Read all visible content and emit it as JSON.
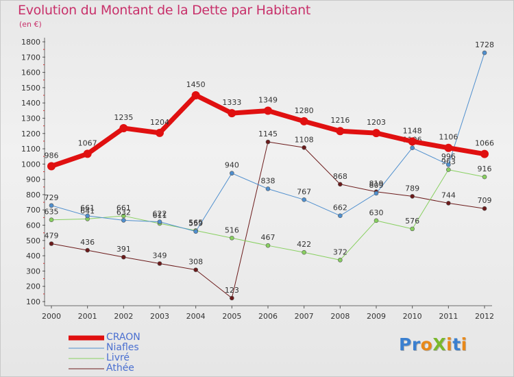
{
  "title": "Evolution du Montant de la Dette par Habitant",
  "subtitle": "(en €)",
  "logo": {
    "text": "ProXiti",
    "letter_colors": [
      "#3a7fd0",
      "#3a7fd0",
      "#e8891a",
      "#7ab82c",
      "#e8891a",
      "#3a7fd0",
      "#e8891a"
    ]
  },
  "chart_data": {
    "type": "line",
    "title": "Evolution du Montant de la Dette par Habitant",
    "ylabel": "(en €)",
    "xlabel": "",
    "x": [
      "2000",
      "2001",
      "2002",
      "2003",
      "2004",
      "2005",
      "2006",
      "2007",
      "2008",
      "2009",
      "2010",
      "2011",
      "2012"
    ],
    "ylim": [
      100,
      1800
    ],
    "yticks": [
      100,
      200,
      300,
      400,
      500,
      600,
      700,
      800,
      900,
      1000,
      1100,
      1200,
      1300,
      1400,
      1500,
      1600,
      1700,
      1800
    ],
    "grid": false,
    "legend_position": "bottom-left",
    "series": [
      {
        "name": "Athée",
        "color": "#6b1a1a",
        "line_width": 1,
        "marker_radius": 3,
        "values": [
          479,
          436,
          391,
          349,
          308,
          123,
          1145,
          1108,
          868,
          819,
          789,
          744,
          709
        ]
      },
      {
        "name": "Livré",
        "color": "#88d060",
        "line_width": 1,
        "marker_radius": 3,
        "values": [
          635,
          641,
          661,
          611,
          565,
          516,
          467,
          422,
          372,
          630,
          576,
          963,
          916
        ]
      },
      {
        "name": "Niafles",
        "color": "#4f8fce",
        "line_width": 1,
        "marker_radius": 3,
        "values": [
          729,
          661,
          632,
          622,
          559,
          940,
          838,
          767,
          662,
          809,
          1106,
          996,
          1728
        ]
      },
      {
        "name": "CRAON",
        "color": "#e01010",
        "line_width": 7,
        "marker_radius": 6,
        "values": [
          986,
          1067,
          1235,
          1204,
          1450,
          1333,
          1349,
          1280,
          1216,
          1203,
          1148,
          1106,
          1066
        ]
      }
    ]
  },
  "legend": [
    {
      "name": "CRAON",
      "color": "#e01010",
      "text_color": "#4a6fd0",
      "thickness": 7
    },
    {
      "name": "Niafles",
      "color": "#4f8fce",
      "text_color": "#4a6fd0",
      "thickness": 1
    },
    {
      "name": "Livré",
      "color": "#88d060",
      "text_color": "#4a6fd0",
      "thickness": 1
    },
    {
      "name": "Athée",
      "color": "#6b1a1a",
      "text_color": "#4a6fd0",
      "thickness": 1
    }
  ]
}
